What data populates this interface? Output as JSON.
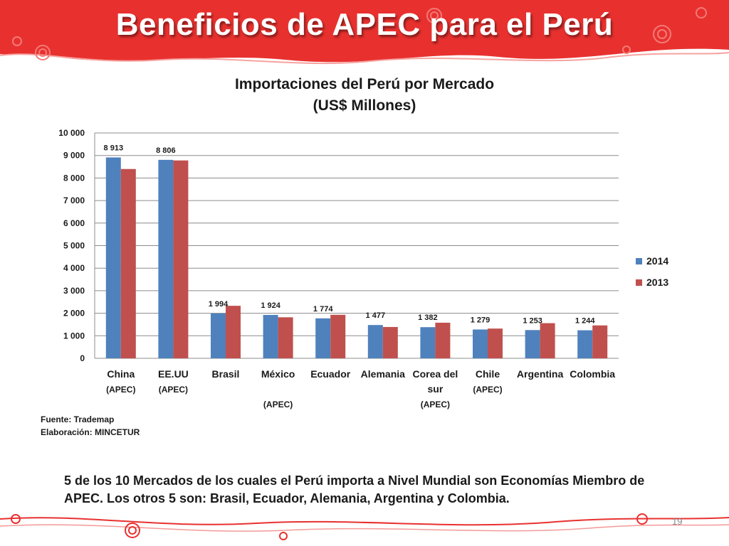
{
  "slide": {
    "title": "Beneficios de APEC para el Perú",
    "page_number": "19"
  },
  "colors": {
    "banner": "#e8312f",
    "series_2014": "#4f81bd",
    "series_2013": "#c0504d"
  },
  "chart_data": {
    "type": "bar",
    "title_line1": "Importaciones del Perú por Mercado",
    "title_line2": "(US$ Millones)",
    "categories": [
      [
        "China",
        "(APEC)"
      ],
      [
        "EE.UU",
        "(APEC)"
      ],
      [
        "Brasil"
      ],
      [
        "México",
        "",
        "(APEC)"
      ],
      [
        "Ecuador"
      ],
      [
        "Alemania"
      ],
      [
        "Corea del",
        "sur",
        "(APEC)"
      ],
      [
        "Chile",
        "(APEC)"
      ],
      [
        "Argentina"
      ],
      [
        "Colombia"
      ]
    ],
    "series": [
      {
        "name": "2014",
        "values": [
          8913,
          8806,
          1994,
          1924,
          1774,
          1477,
          1382,
          1279,
          1253,
          1244
        ]
      },
      {
        "name": "2013",
        "values": [
          8400,
          8780,
          2330,
          1820,
          1930,
          1390,
          1580,
          1320,
          1560,
          1460
        ]
      }
    ],
    "data_labels": [
      "8 913",
      "8 806",
      "1 994",
      "1 924",
      "1 774",
      "1 477",
      "1 382",
      "1 279",
      "1 253",
      "1 244"
    ],
    "y_ticks": [
      "0",
      "1 000",
      "2 000",
      "3 000",
      "4 000",
      "5 000",
      "6 000",
      "7 000",
      "8 000",
      "9 000",
      "10 000"
    ],
    "ylim": [
      0,
      10000
    ],
    "grid": true,
    "legend_position": "right"
  },
  "source": {
    "line1": "Fuente: Trademap",
    "line2": "Elaboración: MINCETUR"
  },
  "footnote": "5 de los 10 Mercados de los cuales el Perú importa a Nivel Mundial son Economías Miembro de APEC. Los otros 5 son: Brasil, Ecuador, Alemania, Argentina y Colombia."
}
